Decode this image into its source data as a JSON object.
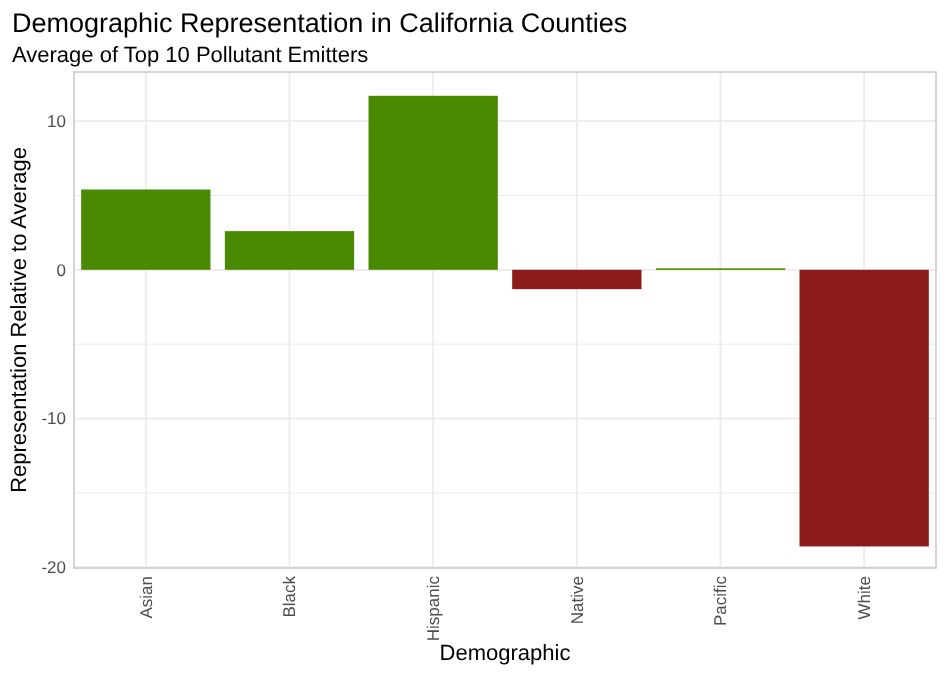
{
  "chart_data": {
    "type": "bar",
    "title": "Demographic Representation in California Counties",
    "subtitle": "Average of Top 10 Pollutant Emitters",
    "xlabel": "Demographic",
    "ylabel": "Representation Relative to Average",
    "categories": [
      "Asian",
      "Black",
      "Hispanic",
      "Native",
      "Pacific",
      "White"
    ],
    "values": [
      5.4,
      2.6,
      11.7,
      -1.3,
      0.1,
      -18.6
    ],
    "colors": [
      "#4a8a00",
      "#4a8a00",
      "#4a8a00",
      "#8b1a1a",
      "#4a8a00",
      "#8b1a1a"
    ],
    "ylim": [
      -20.05,
      13.3
    ],
    "yticks": [
      -20,
      {
        "value": -15,
        "label": null
      },
      -10,
      {
        "value": -5,
        "label": null
      },
      0,
      {
        "value": 5,
        "label": null
      },
      10
    ],
    "grid": true
  }
}
